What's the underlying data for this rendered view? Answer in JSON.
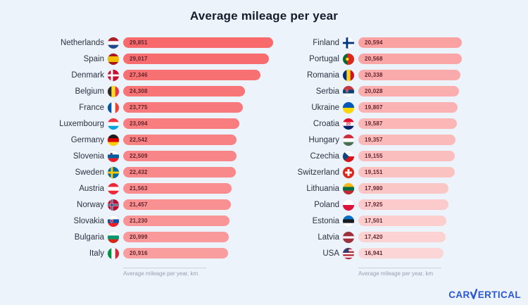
{
  "colors": {
    "background": "#edf3fa",
    "bar_high": "#f7696b",
    "bar_low": "#fcd6d6",
    "value_text": "#63242c",
    "label_text": "#2a3342",
    "title_text": "#141d2b",
    "axis_text": "#95a1b2",
    "axis_line": "#c7d2e0",
    "logo_blue": "#2c57d4"
  },
  "branding": {
    "logo_left": "CAR",
    "logo_right": "ERTICAL",
    "logo_v_icon": "check-v-icon"
  },
  "chart_data": {
    "type": "bar",
    "orientation": "horizontal",
    "title": "Average mileage per year",
    "xlabel": "Average mileage per year, km",
    "value_unit": "km",
    "max_value": 29851,
    "legend": "none",
    "grid": false,
    "columns": [
      {
        "rows": [
          {
            "country": "Netherlands",
            "flag": "netherlands",
            "value": 29851
          },
          {
            "country": "Spain",
            "flag": "spain",
            "value": 29017
          },
          {
            "country": "Denmark",
            "flag": "denmark",
            "value": 27346
          },
          {
            "country": "Belgium",
            "flag": "belgium",
            "value": 24308
          },
          {
            "country": "France",
            "flag": "france",
            "value": 23775
          },
          {
            "country": "Luxembourg",
            "flag": "luxembourg",
            "value": 23094
          },
          {
            "country": "Germany",
            "flag": "germany",
            "value": 22542
          },
          {
            "country": "Slovenia",
            "flag": "slovenia",
            "value": 22509
          },
          {
            "country": "Sweden",
            "flag": "sweden",
            "value": 22432
          },
          {
            "country": "Austria",
            "flag": "austria",
            "value": 21563
          },
          {
            "country": "Norway",
            "flag": "norway",
            "value": 21457
          },
          {
            "country": "Slovakia",
            "flag": "slovakia",
            "value": 21230
          },
          {
            "country": "Bulgaria",
            "flag": "bulgaria",
            "value": 20999
          },
          {
            "country": "Italy",
            "flag": "italy",
            "value": 20916
          }
        ]
      },
      {
        "rows": [
          {
            "country": "Finland",
            "flag": "finland",
            "value": 20594
          },
          {
            "country": "Portugal",
            "flag": "portugal",
            "value": 20568
          },
          {
            "country": "Romania",
            "flag": "romania",
            "value": 20338
          },
          {
            "country": "Serbia",
            "flag": "serbia",
            "value": 20028
          },
          {
            "country": "Ukraine",
            "flag": "ukraine",
            "value": 19807
          },
          {
            "country": "Croatia",
            "flag": "croatia",
            "value": 19587
          },
          {
            "country": "Hungary",
            "flag": "hungary",
            "value": 19357
          },
          {
            "country": "Czechia",
            "flag": "czechia",
            "value": 19155
          },
          {
            "country": "Switzerland",
            "flag": "switzerland",
            "value": 19151
          },
          {
            "country": "Lithuania",
            "flag": "lithuania",
            "value": 17980
          },
          {
            "country": "Poland",
            "flag": "poland",
            "value": 17925
          },
          {
            "country": "Estonia",
            "flag": "estonia",
            "value": 17501
          },
          {
            "country": "Latvia",
            "flag": "latvia",
            "value": 17420
          },
          {
            "country": "USA",
            "flag": "usa",
            "value": 16941
          }
        ]
      }
    ]
  }
}
